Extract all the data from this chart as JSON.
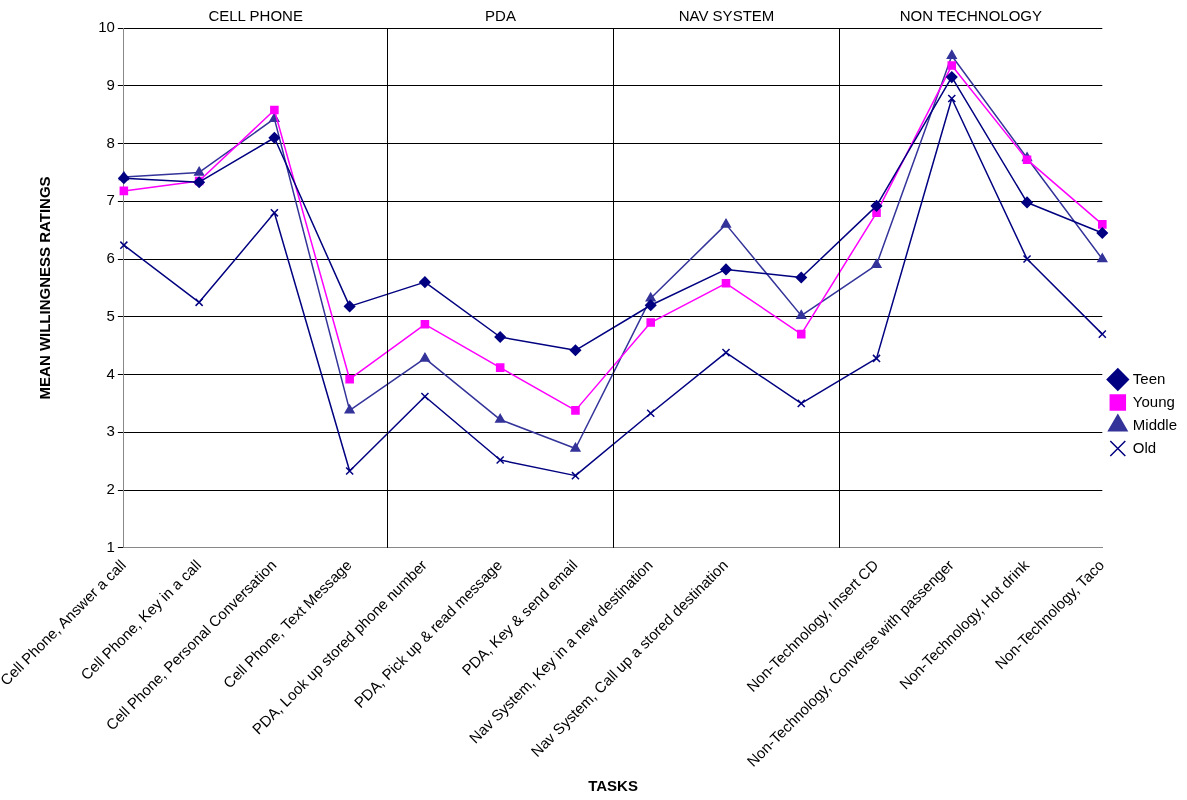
{
  "chart_data": {
    "type": "line",
    "xlabel": "TASKS",
    "ylabel": "MEAN WILLINGNESS RATINGS",
    "categories": [
      "Cell Phone, Answer a call",
      "Cell Phone, Key in a call",
      "Cell Phone, Personal Conversation",
      "Cell Phone, Text Message",
      "PDA, Look up stored phone number",
      "PDA, Pick up & read message",
      "PDA, Key & send email",
      "Nav System, Key in a new destination",
      "Nav System, Call up a stored destination",
      null,
      "Non-Technology, Insert CD",
      "Non-Technology, Converse with passenger",
      "Non-Technology, Hot drink",
      "Non-Technology, Taco"
    ],
    "series": [
      {
        "name": "Teen",
        "color": "#000080",
        "marker": "diamond",
        "values": [
          7.4,
          7.33,
          8.1,
          5.18,
          5.6,
          4.65,
          4.42,
          5.2,
          5.82,
          5.68,
          6.92,
          9.15,
          6.98,
          6.45
        ]
      },
      {
        "name": "Young",
        "color": "#ff00ff",
        "marker": "square",
        "values": [
          7.18,
          7.35,
          8.58,
          3.92,
          4.87,
          4.12,
          3.38,
          4.9,
          5.58,
          4.7,
          6.8,
          9.35,
          7.72,
          6.6
        ]
      },
      {
        "name": "Middle",
        "color": "#333399",
        "marker": "triangle",
        "values": [
          7.42,
          7.5,
          8.43,
          3.38,
          4.28,
          3.22,
          2.72,
          5.32,
          6.6,
          5.02,
          5.9,
          9.52,
          7.75,
          6.0
        ]
      },
      {
        "name": "Old",
        "color": "#000080",
        "marker": "cross",
        "values": [
          6.24,
          5.25,
          6.8,
          2.33,
          3.62,
          2.52,
          2.25,
          3.33,
          4.38,
          3.5,
          4.28,
          8.78,
          6.0,
          4.7
        ]
      }
    ],
    "ylim": [
      1,
      10
    ],
    "yticks": [
      1,
      2,
      3,
      4,
      5,
      6,
      7,
      8,
      9,
      10
    ],
    "grid": "y",
    "legend": "right",
    "annotations": [
      "CELL PHONE",
      "PDA",
      "NAV SYSTEM",
      "NON TECHNOLOGY"
    ]
  }
}
